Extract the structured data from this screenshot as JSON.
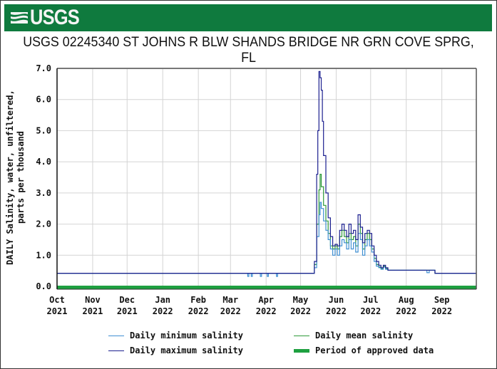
{
  "header": {
    "logo_text": "USGS",
    "banner_color": "#0f7a3e",
    "title": "USGS 02245340 ST JOHNS R BLW SHANDS BRIDGE NR GRN COVE SPRG, FL"
  },
  "legend": {
    "items": [
      {
        "label": "Daily minimum salinity",
        "color": "#3f8fd2",
        "style": "line"
      },
      {
        "label": "Daily mean salinity",
        "color": "#2e9a3a",
        "style": "line"
      },
      {
        "label": "Daily maximum salinity",
        "color": "#1b1f8f",
        "style": "line"
      },
      {
        "label": "Period of approved data",
        "color": "#1ea040",
        "style": "thick"
      }
    ]
  },
  "chart_data": {
    "type": "line",
    "title": "USGS 02245340 ST JOHNS R BLW SHANDS BRIDGE NR GRN COVE SPRG, FL",
    "xlabel": "",
    "ylabel": "DAILY Salinity, water, unfiltered, parts per thousand",
    "ylabel_lines": [
      "DAILY Salinity, water, unfiltered,",
      "parts per thousand"
    ],
    "ylim": [
      0,
      7
    ],
    "yticks": [
      "0.0",
      "1.0",
      "2.0",
      "3.0",
      "4.0",
      "5.0",
      "6.0",
      "7.0"
    ],
    "xlim_days": [
      0,
      365
    ],
    "xticks": [
      {
        "label": [
          "Oct",
          "2021"
        ],
        "day": 0
      },
      {
        "label": [
          "Nov",
          "2021"
        ],
        "day": 31
      },
      {
        "label": [
          "Dec",
          "2021"
        ],
        "day": 61
      },
      {
        "label": [
          "Jan",
          "2022"
        ],
        "day": 92
      },
      {
        "label": [
          "Feb",
          "2022"
        ],
        "day": 123
      },
      {
        "label": [
          "Mar",
          "2022"
        ],
        "day": 151
      },
      {
        "label": [
          "Apr",
          "2022"
        ],
        "day": 182
      },
      {
        "label": [
          "May",
          "2022"
        ],
        "day": 212
      },
      {
        "label": [
          "Jun",
          "2022"
        ],
        "day": 243
      },
      {
        "label": [
          "Jul",
          "2022"
        ],
        "day": 273
      },
      {
        "label": [
          "Aug",
          "2022"
        ],
        "day": 304
      },
      {
        "label": [
          "Sep",
          "2022"
        ],
        "day": 335
      }
    ],
    "grid": true,
    "legend_position": "bottom",
    "series": [
      {
        "name": "Daily minimum salinity",
        "color": "#3f8fd2",
        "points": [
          [
            0,
            0.42
          ],
          [
            165,
            0.42
          ],
          [
            166,
            0.32
          ],
          [
            167,
            0.42
          ],
          [
            169,
            0.32
          ],
          [
            170,
            0.42
          ],
          [
            177,
            0.32
          ],
          [
            178,
            0.42
          ],
          [
            183,
            0.32
          ],
          [
            184,
            0.42
          ],
          [
            191,
            0.32
          ],
          [
            192,
            0.42
          ],
          [
            223,
            0.42
          ],
          [
            224,
            0.6
          ],
          [
            226,
            1.6
          ],
          [
            228,
            2.3
          ],
          [
            229,
            2.7
          ],
          [
            230,
            2.5
          ],
          [
            232,
            2.1
          ],
          [
            234,
            1.8
          ],
          [
            236,
            1.5
          ],
          [
            238,
            1.2
          ],
          [
            240,
            1.0
          ],
          [
            242,
            1.2
          ],
          [
            244,
            1.0
          ],
          [
            246,
            1.3
          ],
          [
            248,
            1.5
          ],
          [
            250,
            1.4
          ],
          [
            252,
            1.2
          ],
          [
            254,
            1.5
          ],
          [
            256,
            1.2
          ],
          [
            258,
            1.4
          ],
          [
            260,
            1.1
          ],
          [
            262,
            1.7
          ],
          [
            264,
            1.5
          ],
          [
            266,
            1.0
          ],
          [
            268,
            1.3
          ],
          [
            270,
            1.5
          ],
          [
            272,
            1.3
          ],
          [
            274,
            1.1
          ],
          [
            276,
            0.8
          ],
          [
            278,
            0.65
          ],
          [
            280,
            0.6
          ],
          [
            282,
            0.55
          ],
          [
            284,
            0.62
          ],
          [
            286,
            0.55
          ],
          [
            288,
            0.52
          ],
          [
            320,
            0.52
          ],
          [
            322,
            0.44
          ],
          [
            324,
            0.52
          ],
          [
            327,
            0.52
          ],
          [
            329,
            0.42
          ],
          [
            365,
            0.42
          ]
        ]
      },
      {
        "name": "Daily mean salinity",
        "color": "#2e9a3a",
        "points": [
          [
            0,
            0.42
          ],
          [
            223,
            0.42
          ],
          [
            224,
            0.7
          ],
          [
            226,
            2.0
          ],
          [
            228,
            3.1
          ],
          [
            229,
            3.6
          ],
          [
            230,
            3.2
          ],
          [
            232,
            2.6
          ],
          [
            234,
            2.1
          ],
          [
            236,
            1.7
          ],
          [
            238,
            1.3
          ],
          [
            240,
            1.2
          ],
          [
            242,
            1.3
          ],
          [
            244,
            1.2
          ],
          [
            246,
            1.6
          ],
          [
            248,
            1.8
          ],
          [
            250,
            1.6
          ],
          [
            252,
            1.4
          ],
          [
            254,
            1.7
          ],
          [
            256,
            1.5
          ],
          [
            258,
            1.6
          ],
          [
            260,
            1.3
          ],
          [
            262,
            2.0
          ],
          [
            264,
            1.7
          ],
          [
            266,
            1.2
          ],
          [
            268,
            1.5
          ],
          [
            270,
            1.7
          ],
          [
            272,
            1.5
          ],
          [
            274,
            1.2
          ],
          [
            276,
            0.9
          ],
          [
            278,
            0.7
          ],
          [
            280,
            0.62
          ],
          [
            282,
            0.57
          ],
          [
            284,
            0.65
          ],
          [
            286,
            0.57
          ],
          [
            288,
            0.52
          ],
          [
            327,
            0.52
          ],
          [
            329,
            0.42
          ],
          [
            365,
            0.42
          ]
        ]
      },
      {
        "name": "Daily maximum salinity",
        "color": "#1b1f8f",
        "points": [
          [
            0,
            0.42
          ],
          [
            223,
            0.42
          ],
          [
            224,
            0.8
          ],
          [
            226,
            3.6
          ],
          [
            227,
            5.0
          ],
          [
            228,
            6.9
          ],
          [
            229,
            6.7
          ],
          [
            230,
            6.3
          ],
          [
            231,
            5.3
          ],
          [
            232,
            4.2
          ],
          [
            234,
            3.0
          ],
          [
            236,
            2.2
          ],
          [
            238,
            1.6
          ],
          [
            240,
            1.3
          ],
          [
            242,
            1.35
          ],
          [
            244,
            1.3
          ],
          [
            246,
            1.8
          ],
          [
            248,
            2.0
          ],
          [
            250,
            1.8
          ],
          [
            252,
            1.6
          ],
          [
            254,
            2.0
          ],
          [
            256,
            1.7
          ],
          [
            258,
            1.8
          ],
          [
            260,
            1.5
          ],
          [
            262,
            2.3
          ],
          [
            264,
            1.9
          ],
          [
            266,
            1.4
          ],
          [
            268,
            1.7
          ],
          [
            270,
            1.8
          ],
          [
            272,
            1.7
          ],
          [
            274,
            1.3
          ],
          [
            276,
            1.0
          ],
          [
            278,
            0.8
          ],
          [
            280,
            0.68
          ],
          [
            282,
            0.6
          ],
          [
            284,
            0.68
          ],
          [
            286,
            0.6
          ],
          [
            288,
            0.52
          ],
          [
            327,
            0.52
          ],
          [
            329,
            0.42
          ],
          [
            365,
            0.42
          ]
        ]
      }
    ],
    "approved_period": {
      "start_day": 0,
      "end_day": 365,
      "value": 0.0,
      "color": "#1ea040"
    }
  }
}
